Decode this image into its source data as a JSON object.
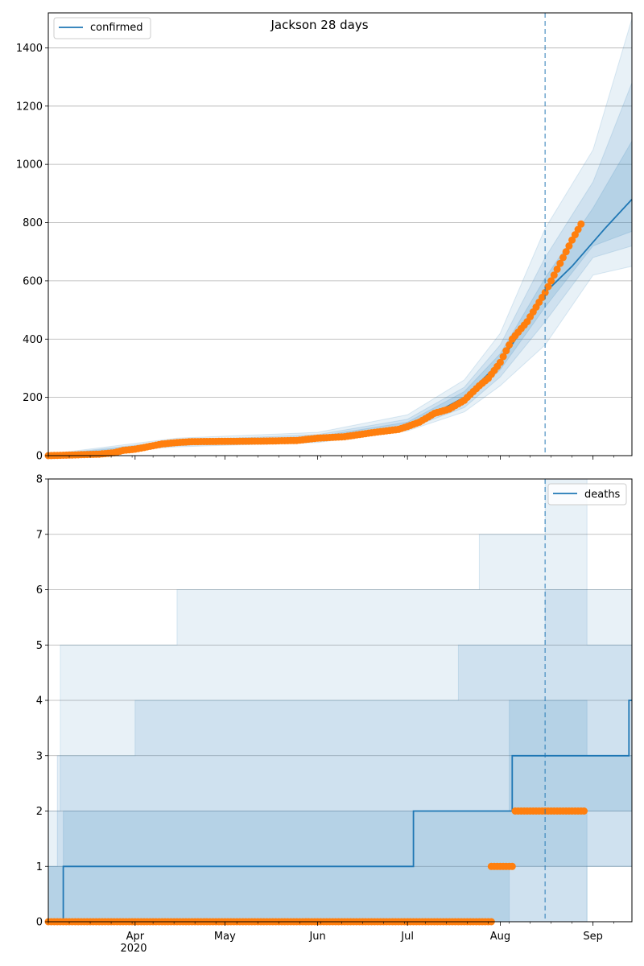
{
  "chart_data": [
    {
      "type": "line",
      "title": "Jackson 28 days",
      "legend": {
        "entries": [
          "confirmed"
        ],
        "placement": "top-left"
      },
      "xlim": [
        "2020-03-03",
        "2020-09-14"
      ],
      "ylim": [
        0,
        1520
      ],
      "x_ticks": [
        {
          "date": "2020-04-01",
          "label": "Apr"
        },
        {
          "date": "2020-05-01",
          "label": "May"
        },
        {
          "date": "2020-06-01",
          "label": "Jun"
        },
        {
          "date": "2020-07-01",
          "label": "Jul"
        },
        {
          "date": "2020-08-01",
          "label": "Aug"
        },
        {
          "date": "2020-09-01",
          "label": "Sep"
        }
      ],
      "x_year_label": "2020",
      "y_ticks": [
        0,
        200,
        400,
        600,
        800,
        1000,
        1200,
        1400
      ],
      "grid": "horizontal",
      "forecast_start": "2020-08-16",
      "colors": {
        "model": "#1f77b4",
        "observed": "#ff7f0e",
        "band": "#1f77b4"
      },
      "series": [
        {
          "name": "confirmed",
          "x": [
            "2020-03-03",
            "2020-03-20",
            "2020-04-01",
            "2020-04-15",
            "2020-05-01",
            "2020-06-01",
            "2020-06-20",
            "2020-07-01",
            "2020-07-10",
            "2020-07-20",
            "2020-08-01",
            "2020-08-10",
            "2020-08-16",
            "2020-08-25",
            "2020-09-05",
            "2020-09-14"
          ],
          "y": [
            0,
            5,
            20,
            40,
            48,
            60,
            80,
            105,
            145,
            200,
            320,
            460,
            560,
            650,
            780,
            880
          ]
        }
      ],
      "bands": [
        {
          "level": "outer",
          "x": [
            "2020-03-03",
            "2020-04-15",
            "2020-06-01",
            "2020-07-01",
            "2020-07-20",
            "2020-08-01",
            "2020-08-16",
            "2020-09-01",
            "2020-09-14"
          ],
          "lower": [
            0,
            30,
            45,
            85,
            150,
            240,
            380,
            620,
            650
          ],
          "upper": [
            5,
            60,
            80,
            140,
            260,
            420,
            780,
            1050,
            1500
          ]
        },
        {
          "level": "middle",
          "x": [
            "2020-03-03",
            "2020-04-15",
            "2020-06-01",
            "2020-07-01",
            "2020-07-20",
            "2020-08-01",
            "2020-08-16",
            "2020-09-01",
            "2020-09-14"
          ],
          "lower": [
            0,
            34,
            50,
            92,
            165,
            270,
            460,
            680,
            720
          ],
          "upper": [
            3,
            52,
            72,
            125,
            235,
            380,
            680,
            940,
            1280
          ]
        },
        {
          "level": "inner",
          "x": [
            "2020-03-03",
            "2020-04-15",
            "2020-06-01",
            "2020-07-01",
            "2020-07-20",
            "2020-08-01",
            "2020-08-16",
            "2020-09-01",
            "2020-09-14"
          ],
          "lower": [
            0,
            37,
            55,
            98,
            180,
            295,
            510,
            720,
            770
          ],
          "upper": [
            2,
            46,
            66,
            115,
            220,
            350,
            610,
            850,
            1080
          ]
        }
      ],
      "observed": {
        "x": [
          "2020-03-03",
          "2020-03-10",
          "2020-03-20",
          "2020-03-25",
          "2020-03-28",
          "2020-04-01",
          "2020-04-05",
          "2020-04-10",
          "2020-04-15",
          "2020-04-20",
          "2020-05-01",
          "2020-05-15",
          "2020-05-25",
          "2020-06-01",
          "2020-06-10",
          "2020-06-20",
          "2020-06-28",
          "2020-07-01",
          "2020-07-05",
          "2020-07-10",
          "2020-07-15",
          "2020-07-20",
          "2020-07-25",
          "2020-07-28",
          "2020-08-01",
          "2020-08-05",
          "2020-08-10",
          "2020-08-13",
          "2020-08-16",
          "2020-08-19",
          "2020-08-22",
          "2020-08-25",
          "2020-08-28"
        ],
        "y": [
          0,
          2,
          5,
          10,
          18,
          22,
          30,
          40,
          45,
          48,
          49,
          50,
          52,
          60,
          65,
          80,
          90,
          100,
          115,
          145,
          160,
          190,
          240,
          265,
          320,
          400,
          460,
          510,
          560,
          620,
          680,
          740,
          795
        ]
      }
    },
    {
      "type": "line",
      "legend": {
        "entries": [
          "deaths"
        ],
        "placement": "top-right"
      },
      "xlim": [
        "2020-03-03",
        "2020-09-14"
      ],
      "ylim": [
        0,
        8
      ],
      "y_ticks": [
        0,
        1,
        2,
        3,
        4,
        5,
        6,
        7,
        8
      ],
      "grid": "horizontal",
      "forecast_start": "2020-08-16",
      "series": [
        {
          "name": "deaths",
          "step": true,
          "x": [
            "2020-03-03",
            "2020-03-08",
            "2020-07-03",
            "2020-08-05",
            "2020-08-16",
            "2020-08-28",
            "2020-09-13",
            "2020-09-14"
          ],
          "y": [
            0,
            1,
            2,
            3,
            3,
            3,
            4,
            4
          ]
        }
      ],
      "bands": [
        {
          "level": "outer",
          "x": [
            "2020-03-03",
            "2020-03-07",
            "2020-04-15",
            "2020-07-25",
            "2020-08-16",
            "2020-08-30",
            "2020-09-14"
          ],
          "lower": [
            0,
            0,
            0,
            0,
            0,
            1,
            2
          ],
          "upper": [
            2,
            5,
            6,
            7,
            8,
            6,
            8
          ]
        },
        {
          "level": "middle",
          "x": [
            "2020-03-03",
            "2020-03-06",
            "2020-04-01",
            "2020-07-18",
            "2020-08-16",
            "2020-08-30",
            "2020-09-14"
          ],
          "lower": [
            0,
            0,
            0,
            0,
            0,
            1,
            2
          ],
          "upper": [
            1,
            3,
            4,
            5,
            6,
            5,
            6
          ]
        },
        {
          "level": "inner",
          "x": [
            "2020-03-03",
            "2020-03-08",
            "2020-06-20",
            "2020-08-04",
            "2020-08-16",
            "2020-08-30",
            "2020-09-14"
          ],
          "lower": [
            0,
            0,
            0,
            1,
            1,
            2,
            2
          ],
          "upper": [
            1,
            2,
            2,
            4,
            4,
            3,
            5
          ]
        }
      ],
      "observed": {
        "segments": [
          {
            "x_from": "2020-03-03",
            "x_to": "2020-07-29",
            "y": 0
          },
          {
            "x_from": "2020-07-29",
            "x_to": "2020-08-05",
            "y": 1
          },
          {
            "x_from": "2020-08-06",
            "x_to": "2020-08-29",
            "y": 2
          }
        ]
      }
    }
  ]
}
